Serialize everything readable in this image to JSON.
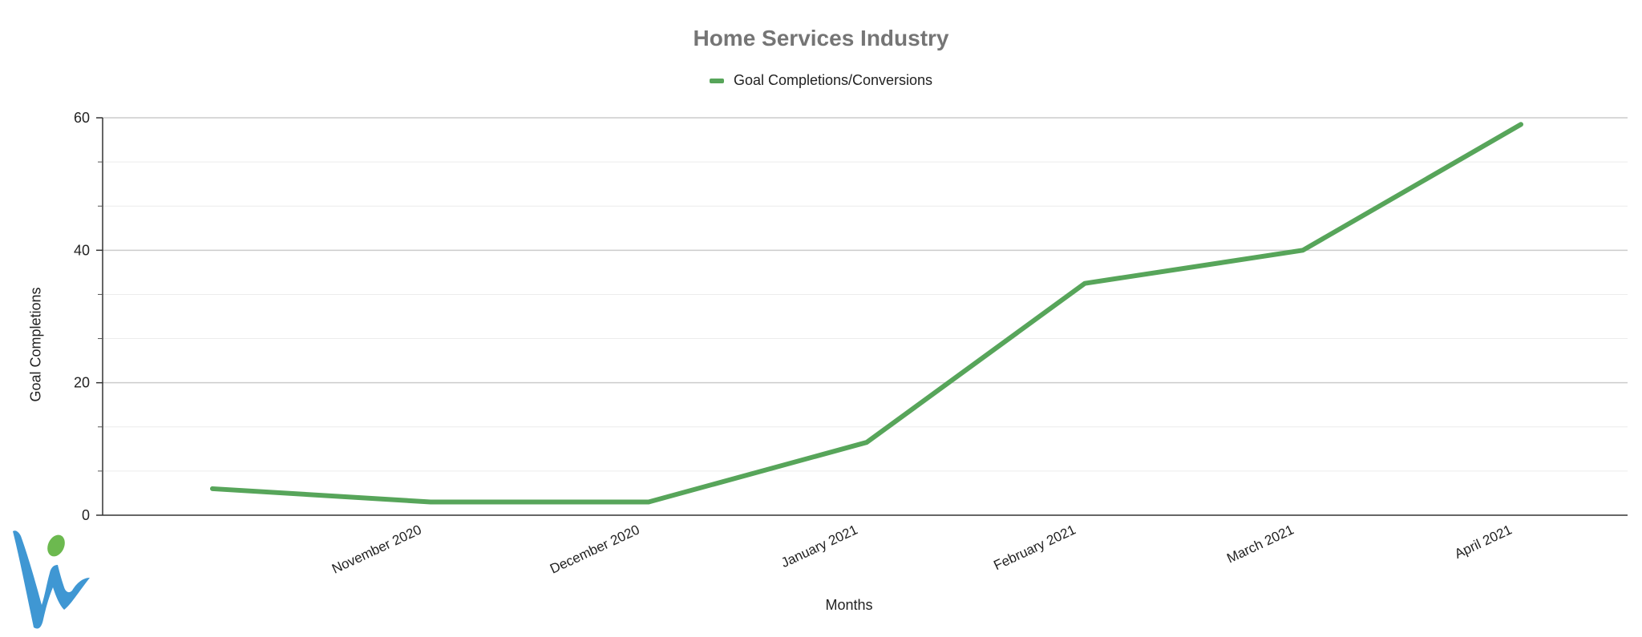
{
  "chart_data": {
    "type": "line",
    "title": "Home Services Industry",
    "xlabel": "Months",
    "ylabel": "Goal Completions",
    "categories": [
      "",
      "November 2020",
      "December 2020",
      "January 2021",
      "February 2021",
      "March 2021",
      "April 2021"
    ],
    "series": [
      {
        "name": "Goal Completions/Conversions",
        "color": "#57a55a",
        "values": [
          4,
          2,
          2,
          11,
          35,
          40,
          59
        ]
      }
    ],
    "ylim": [
      0,
      60
    ],
    "yticks": [
      0,
      20,
      40,
      60
    ],
    "grid": true,
    "legend": "top-center"
  },
  "logo": {
    "icon": "w-person-logo-icon",
    "colors": [
      "#3f97d3",
      "#6cb94f"
    ]
  }
}
